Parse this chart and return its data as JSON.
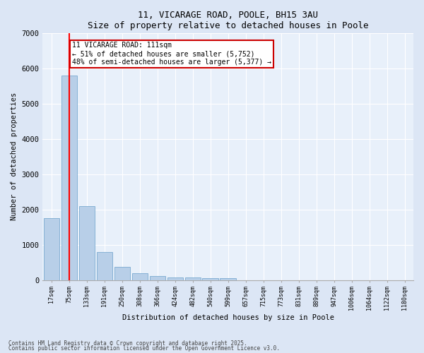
{
  "title1": "11, VICARAGE ROAD, POOLE, BH15 3AU",
  "title2": "Size of property relative to detached houses in Poole",
  "xlabel": "Distribution of detached houses by size in Poole",
  "ylabel": "Number of detached properties",
  "categories": [
    "17sqm",
    "75sqm",
    "133sqm",
    "191sqm",
    "250sqm",
    "308sqm",
    "366sqm",
    "424sqm",
    "482sqm",
    "540sqm",
    "599sqm",
    "657sqm",
    "715sqm",
    "773sqm",
    "831sqm",
    "889sqm",
    "947sqm",
    "1006sqm",
    "1064sqm",
    "1122sqm",
    "1180sqm"
  ],
  "values": [
    1750,
    5800,
    2100,
    800,
    375,
    200,
    120,
    75,
    75,
    60,
    50,
    0,
    0,
    0,
    0,
    0,
    0,
    0,
    0,
    0,
    0
  ],
  "bar_color": "#b8cfe8",
  "bar_edge_color": "#7aaad0",
  "red_line_index": 1,
  "ylim": [
    0,
    7000
  ],
  "yticks": [
    0,
    1000,
    2000,
    3000,
    4000,
    5000,
    6000,
    7000
  ],
  "annotation_text": "11 VICARAGE ROAD: 111sqm\n← 51% of detached houses are smaller (5,752)\n48% of semi-detached houses are larger (5,377) →",
  "annotation_box_color": "#ffffff",
  "annotation_box_edge": "#cc0000",
  "footer1": "Contains HM Land Registry data © Crown copyright and database right 2025.",
  "footer2": "Contains public sector information licensed under the Open Government Licence v3.0.",
  "bg_color": "#dce6f5",
  "plot_bg_color": "#e8f0fa"
}
